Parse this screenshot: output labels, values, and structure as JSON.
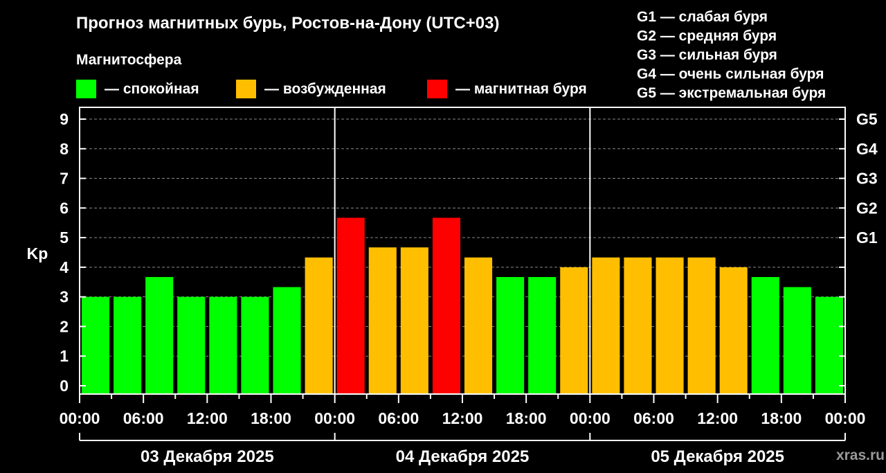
{
  "title": "Прогноз магнитных бурь, Ростов-на-Дону (UTC+03)",
  "subtitle": "Магнитосфера",
  "watermark": "xras.ru",
  "legend": [
    {
      "label": "— спокойная",
      "color": "#00ff00"
    },
    {
      "label": "— возбужденная",
      "color": "#ffbf00"
    },
    {
      "label": "— магнитная буря",
      "color": "#ff0000"
    }
  ],
  "g_levels": [
    "G1 — слабая буря",
    "G2 — средняя буря",
    "G3 — сильная буря",
    "G4 — очень сильная буря",
    "G5 — экстремальная буря"
  ],
  "chart_data": {
    "type": "bar",
    "ylabel": "Kp",
    "ylim": [
      0,
      9
    ],
    "y_ticks": [
      0,
      1,
      2,
      3,
      4,
      5,
      6,
      7,
      8,
      9
    ],
    "right_axis_ticks": [
      {
        "label": "G1",
        "value": 5
      },
      {
        "label": "G2",
        "value": 6
      },
      {
        "label": "G3",
        "value": 7
      },
      {
        "label": "G4",
        "value": 8
      },
      {
        "label": "G5",
        "value": 9
      }
    ],
    "grid": true,
    "legend_position": "top",
    "bar_interval_hours": 3,
    "x_tick_labels": [
      "00:00",
      "06:00",
      "12:00",
      "18:00",
      "00:00",
      "06:00",
      "12:00",
      "18:00",
      "00:00",
      "06:00",
      "12:00",
      "18:00",
      "00:00"
    ],
    "days": [
      "03 Декабря 2025",
      "04 Декабря 2025",
      "05 Декабря 2025"
    ],
    "values": [
      3.0,
      3.0,
      3.67,
      3.0,
      3.0,
      3.0,
      3.33,
      4.33,
      5.67,
      4.67,
      4.67,
      5.67,
      4.33,
      3.67,
      3.67,
      4.0,
      4.33,
      4.33,
      4.33,
      4.33,
      4.0,
      3.67,
      3.33,
      3.0
    ],
    "bar_levels": [
      "спокойная",
      "спокойная",
      "спокойная",
      "спокойная",
      "спокойная",
      "спокойная",
      "спокойная",
      "возбужденная",
      "магнитная буря",
      "возбужденная",
      "возбужденная",
      "магнитная буря",
      "возбужденная",
      "спокойная",
      "спокойная",
      "возбужденная",
      "возбужденная",
      "возбужденная",
      "возбужденная",
      "возбужденная",
      "возбужденная",
      "спокойная",
      "спокойная",
      "спокойная"
    ]
  }
}
